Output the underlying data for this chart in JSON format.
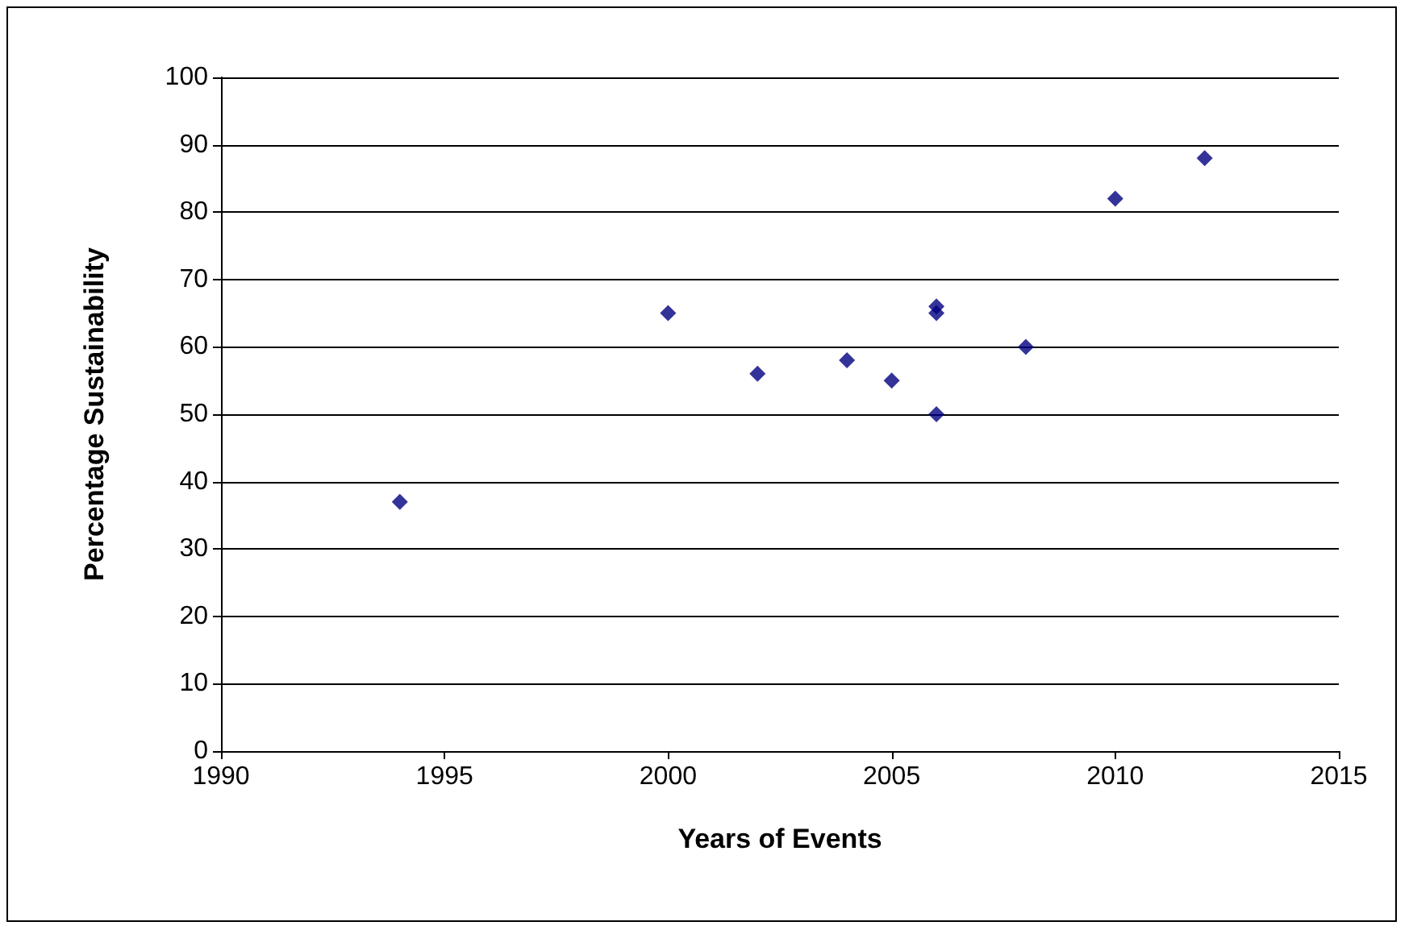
{
  "chart_data": {
    "type": "scatter",
    "xlabel": "Years of Events",
    "ylabel": "Percentage Sustainability",
    "x": [
      1994,
      2000,
      2002,
      2004,
      2005,
      2006,
      2006,
      2006,
      2008,
      2010,
      2012
    ],
    "series": [
      {
        "color": "#000080",
        "values": [
          37,
          65,
          56,
          58,
          55,
          66,
          65,
          50,
          60,
          82,
          88
        ]
      }
    ],
    "xlim": [
      1990,
      2015
    ],
    "xticks": [
      1990,
      1995,
      2000,
      2005,
      2010,
      2015
    ],
    "ylim": [
      0,
      100
    ],
    "yticks": [
      0,
      10,
      20,
      30,
      40,
      50,
      60,
      70,
      80,
      90,
      100
    ],
    "grid": "y",
    "marker": "diamond"
  }
}
